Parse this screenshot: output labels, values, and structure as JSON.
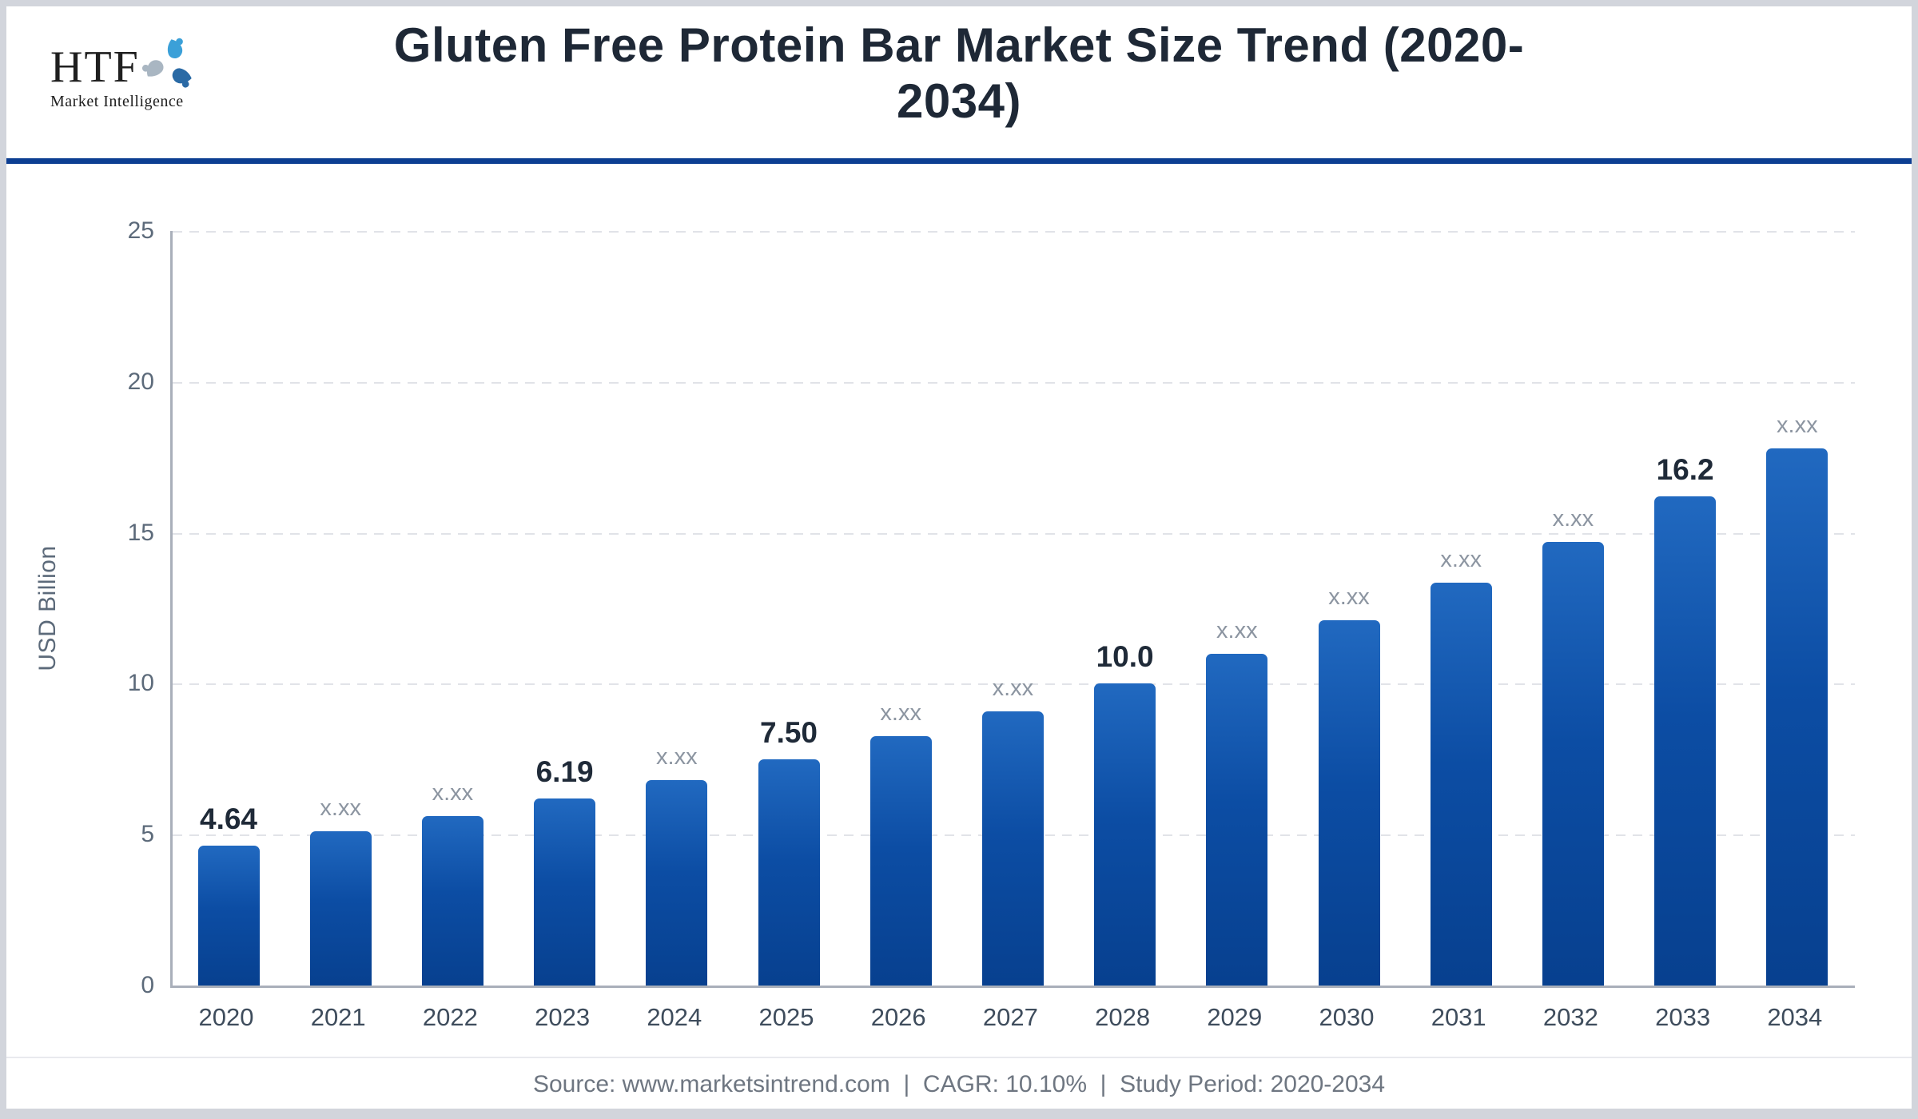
{
  "header": {
    "logo_brand": "HTF",
    "logo_subtitle": "Market Intelligence",
    "title_line1": "Gluten Free Protein Bar Market Size Trend (2020-",
    "title_line2": "2034)"
  },
  "chart_data": {
    "type": "bar",
    "title": "Gluten Free Protein Bar Market Size Trend (2020-2034)",
    "xlabel": "",
    "ylabel": "USD Billion",
    "ylim": [
      0,
      25
    ],
    "yticks_display": [
      "25",
      "20",
      "15",
      "10",
      "5",
      "0"
    ],
    "grid": "horizontal-dashed",
    "legend": "none",
    "categories": [
      "2020",
      "2021",
      "2022",
      "2023",
      "2024",
      "2025",
      "2026",
      "2027",
      "2028",
      "2029",
      "2030",
      "2031",
      "2032",
      "2033",
      "2034"
    ],
    "values": [
      4.64,
      5.11,
      5.62,
      6.19,
      6.81,
      7.5,
      8.25,
      9.08,
      10.0,
      11.0,
      12.1,
      13.35,
      14.7,
      16.2,
      17.8
    ],
    "bar_labels": [
      "4.64",
      "x.xx",
      "x.xx",
      "6.19",
      "x.xx",
      "7.50",
      "x.xx",
      "x.xx",
      "10.0",
      "x.xx",
      "x.xx",
      "x.xx",
      "x.xx",
      "16.2",
      "x.xx"
    ],
    "label_revealed": [
      true,
      false,
      false,
      true,
      false,
      true,
      false,
      false,
      true,
      false,
      false,
      false,
      false,
      true,
      false
    ],
    "bar_color_top": "#2169c0",
    "bar_color_bottom": "#07408f",
    "accent_color": "#0c3e92"
  },
  "footer": {
    "text": "Source: www.marketsintrend.com  |  CAGR: 10.10%  |  Study Period: 2020-2034"
  }
}
